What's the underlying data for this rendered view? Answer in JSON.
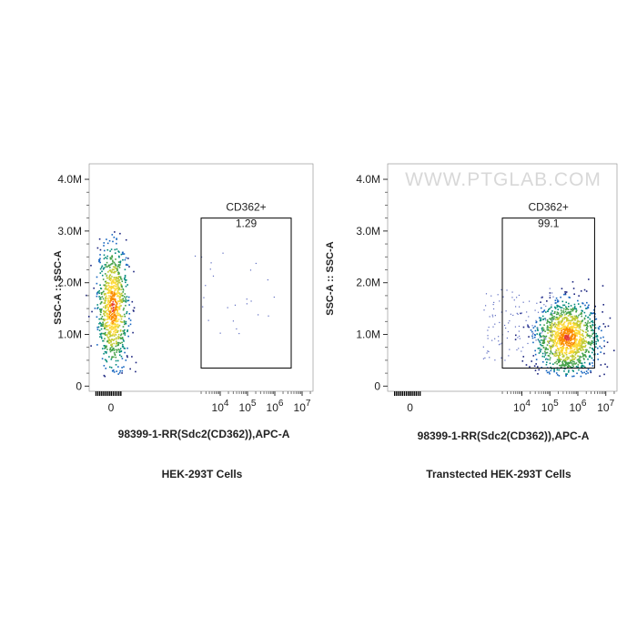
{
  "watermark": "WWW.PTGLAB.COM",
  "chart_data": [
    {
      "type": "scatter",
      "subtype": "flow-cytometry-density",
      "title": "HEK-293T Cells",
      "xlabel": "98399-1-RR(Sdc2(CD362)),APC-A",
      "ylabel": "SSC-A :: SSC-A",
      "x_ticks": [
        {
          "value": 0,
          "label": "0"
        },
        {
          "value": 4,
          "label": "10",
          "exp": "4"
        },
        {
          "value": 5,
          "label": "10",
          "exp": "5"
        },
        {
          "value": 6,
          "label": "10",
          "exp": "6"
        },
        {
          "value": 7,
          "label": "10",
          "exp": "7"
        }
      ],
      "y_ticks": [
        {
          "value": 0,
          "label": "0"
        },
        {
          "value": 1,
          "label": "1.0M"
        },
        {
          "value": 2,
          "label": "2.0M"
        },
        {
          "value": 3,
          "label": "3.0M"
        },
        {
          "value": 4,
          "label": "4.0M"
        }
      ],
      "xlim": [
        -0.8,
        7.4
      ],
      "ylim": [
        -0.1,
        4.3
      ],
      "gate": {
        "name": "CD362+",
        "percent": "1.29",
        "x_range": [
          3.3,
          6.6
        ],
        "y_range": [
          0.35,
          3.25
        ]
      },
      "population": {
        "center_x": 0.05,
        "center_y": 1.55,
        "spread_x": 0.28,
        "spread_y": 0.6
      }
    },
    {
      "type": "scatter",
      "subtype": "flow-cytometry-density",
      "title": "Transtected HEK-293T Cells",
      "xlabel": "98399-1-RR(Sdc2(CD362)),APC-A",
      "ylabel": "SSC-A :: SSC-A",
      "x_ticks": [
        {
          "value": 0,
          "label": "0"
        },
        {
          "value": 4,
          "label": "10",
          "exp": "4"
        },
        {
          "value": 5,
          "label": "10",
          "exp": "5"
        },
        {
          "value": 6,
          "label": "10",
          "exp": "6"
        },
        {
          "value": 7,
          "label": "10",
          "exp": "7"
        }
      ],
      "y_ticks": [
        {
          "value": 0,
          "label": "0"
        },
        {
          "value": 1,
          "label": "1.0M"
        },
        {
          "value": 2,
          "label": "2.0M"
        },
        {
          "value": 3,
          "label": "3.0M"
        },
        {
          "value": 4,
          "label": "4.0M"
        }
      ],
      "xlim": [
        -0.8,
        7.4
      ],
      "ylim": [
        -0.1,
        4.3
      ],
      "gate": {
        "name": "CD362+",
        "percent": "99.1",
        "x_range": [
          3.3,
          6.6
        ],
        "y_range": [
          0.35,
          3.25
        ]
      },
      "population": {
        "center_x": 5.6,
        "center_y": 0.95,
        "spread_x": 0.55,
        "spread_y": 0.35
      }
    }
  ]
}
